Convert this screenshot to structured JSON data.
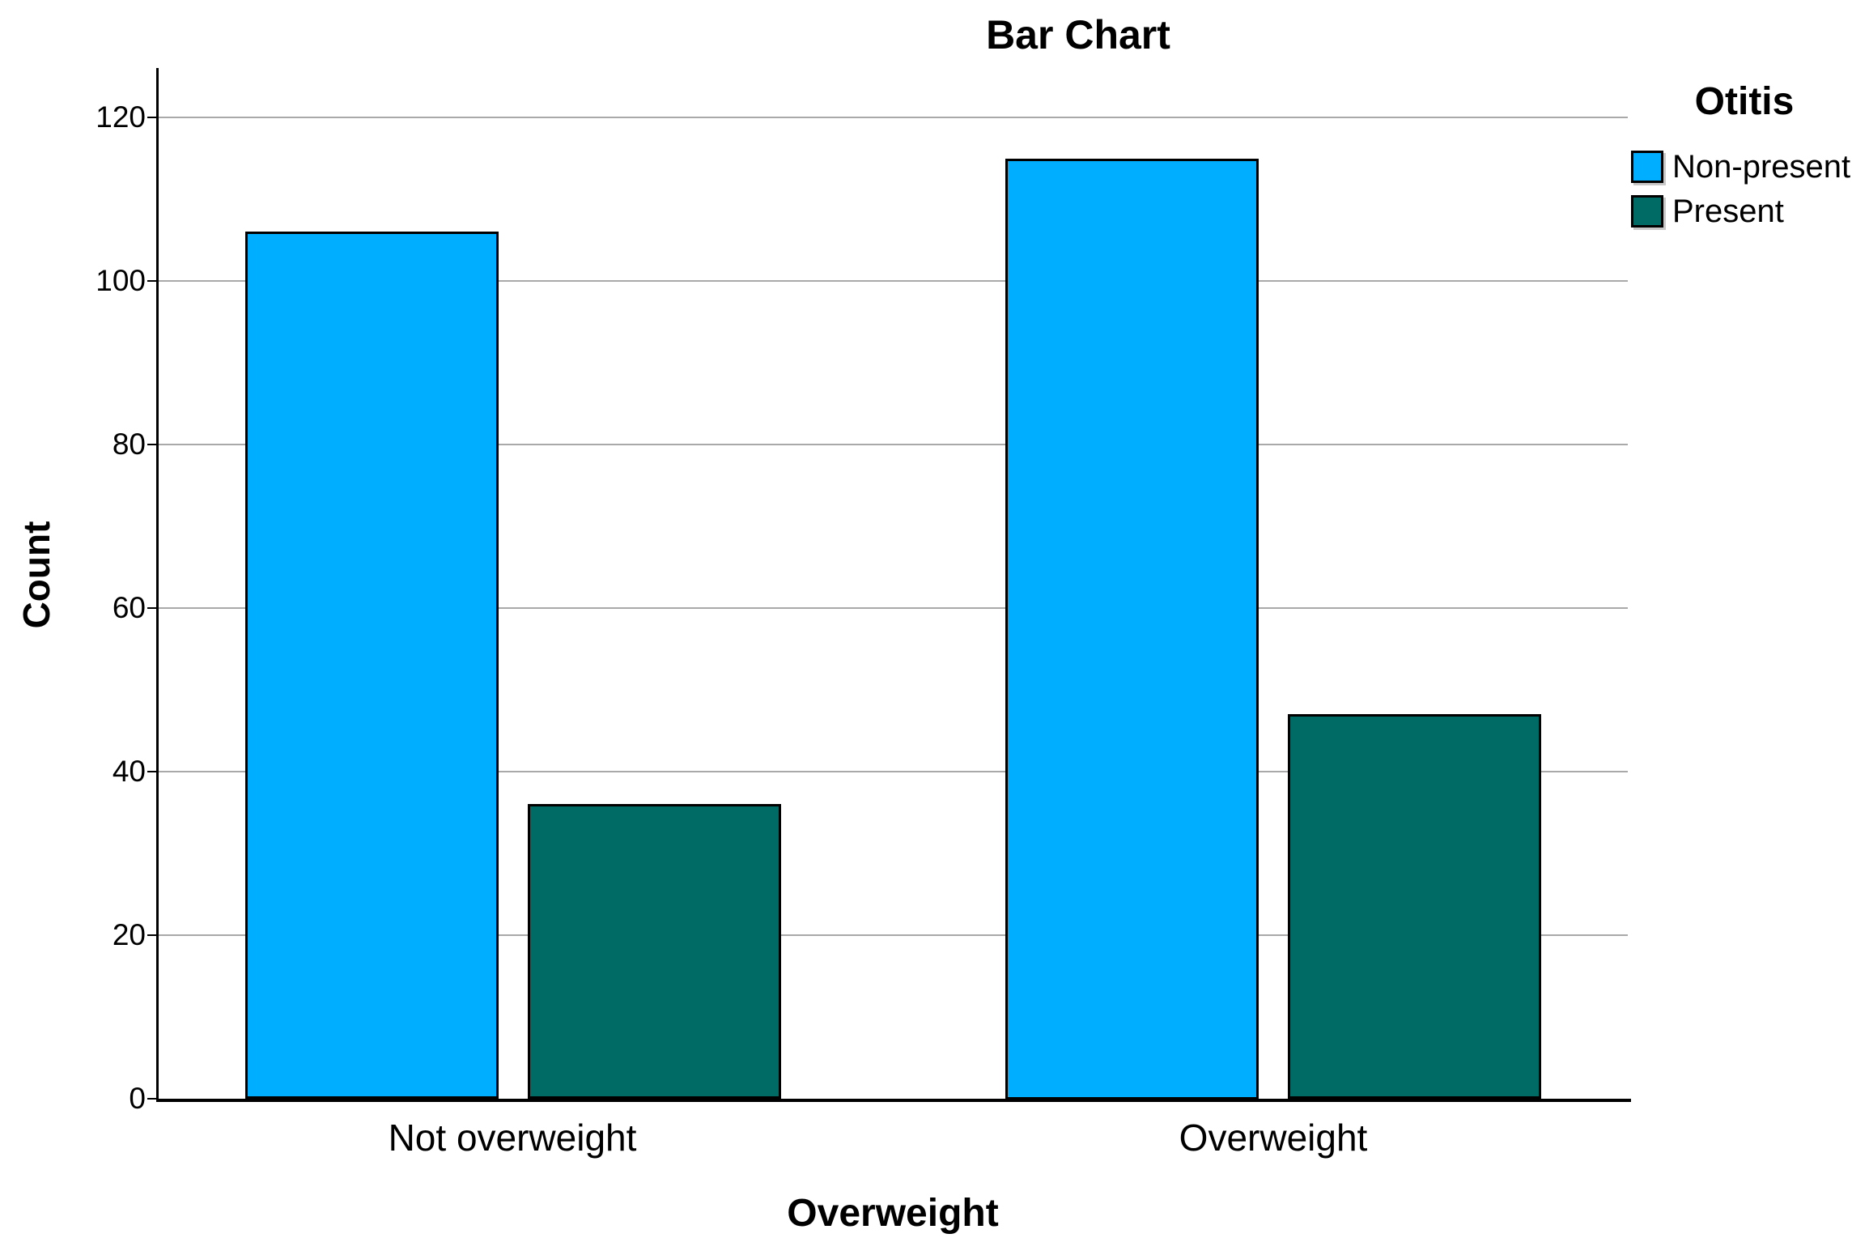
{
  "chart_data": {
    "type": "bar",
    "title": "Bar Chart",
    "categories": [
      "Not overweight",
      "Overweight"
    ],
    "series": [
      {
        "name": "Non-present",
        "color": "#00AEFF",
        "values": [
          106,
          115
        ]
      },
      {
        "name": "Present",
        "color": "#006A64",
        "values": [
          36,
          47
        ]
      }
    ],
    "xlabel": "Overweight",
    "ylabel": "Count",
    "ylim": [
      0,
      130
    ],
    "yticks": [
      0,
      20,
      40,
      60,
      80,
      100,
      120
    ],
    "legend_title": "Otitis",
    "legend_position": "top-right",
    "grid": "horizontal",
    "gridline_color": "#a9a9a9",
    "bar_border_color": "#000000",
    "background": "#ffffff"
  }
}
